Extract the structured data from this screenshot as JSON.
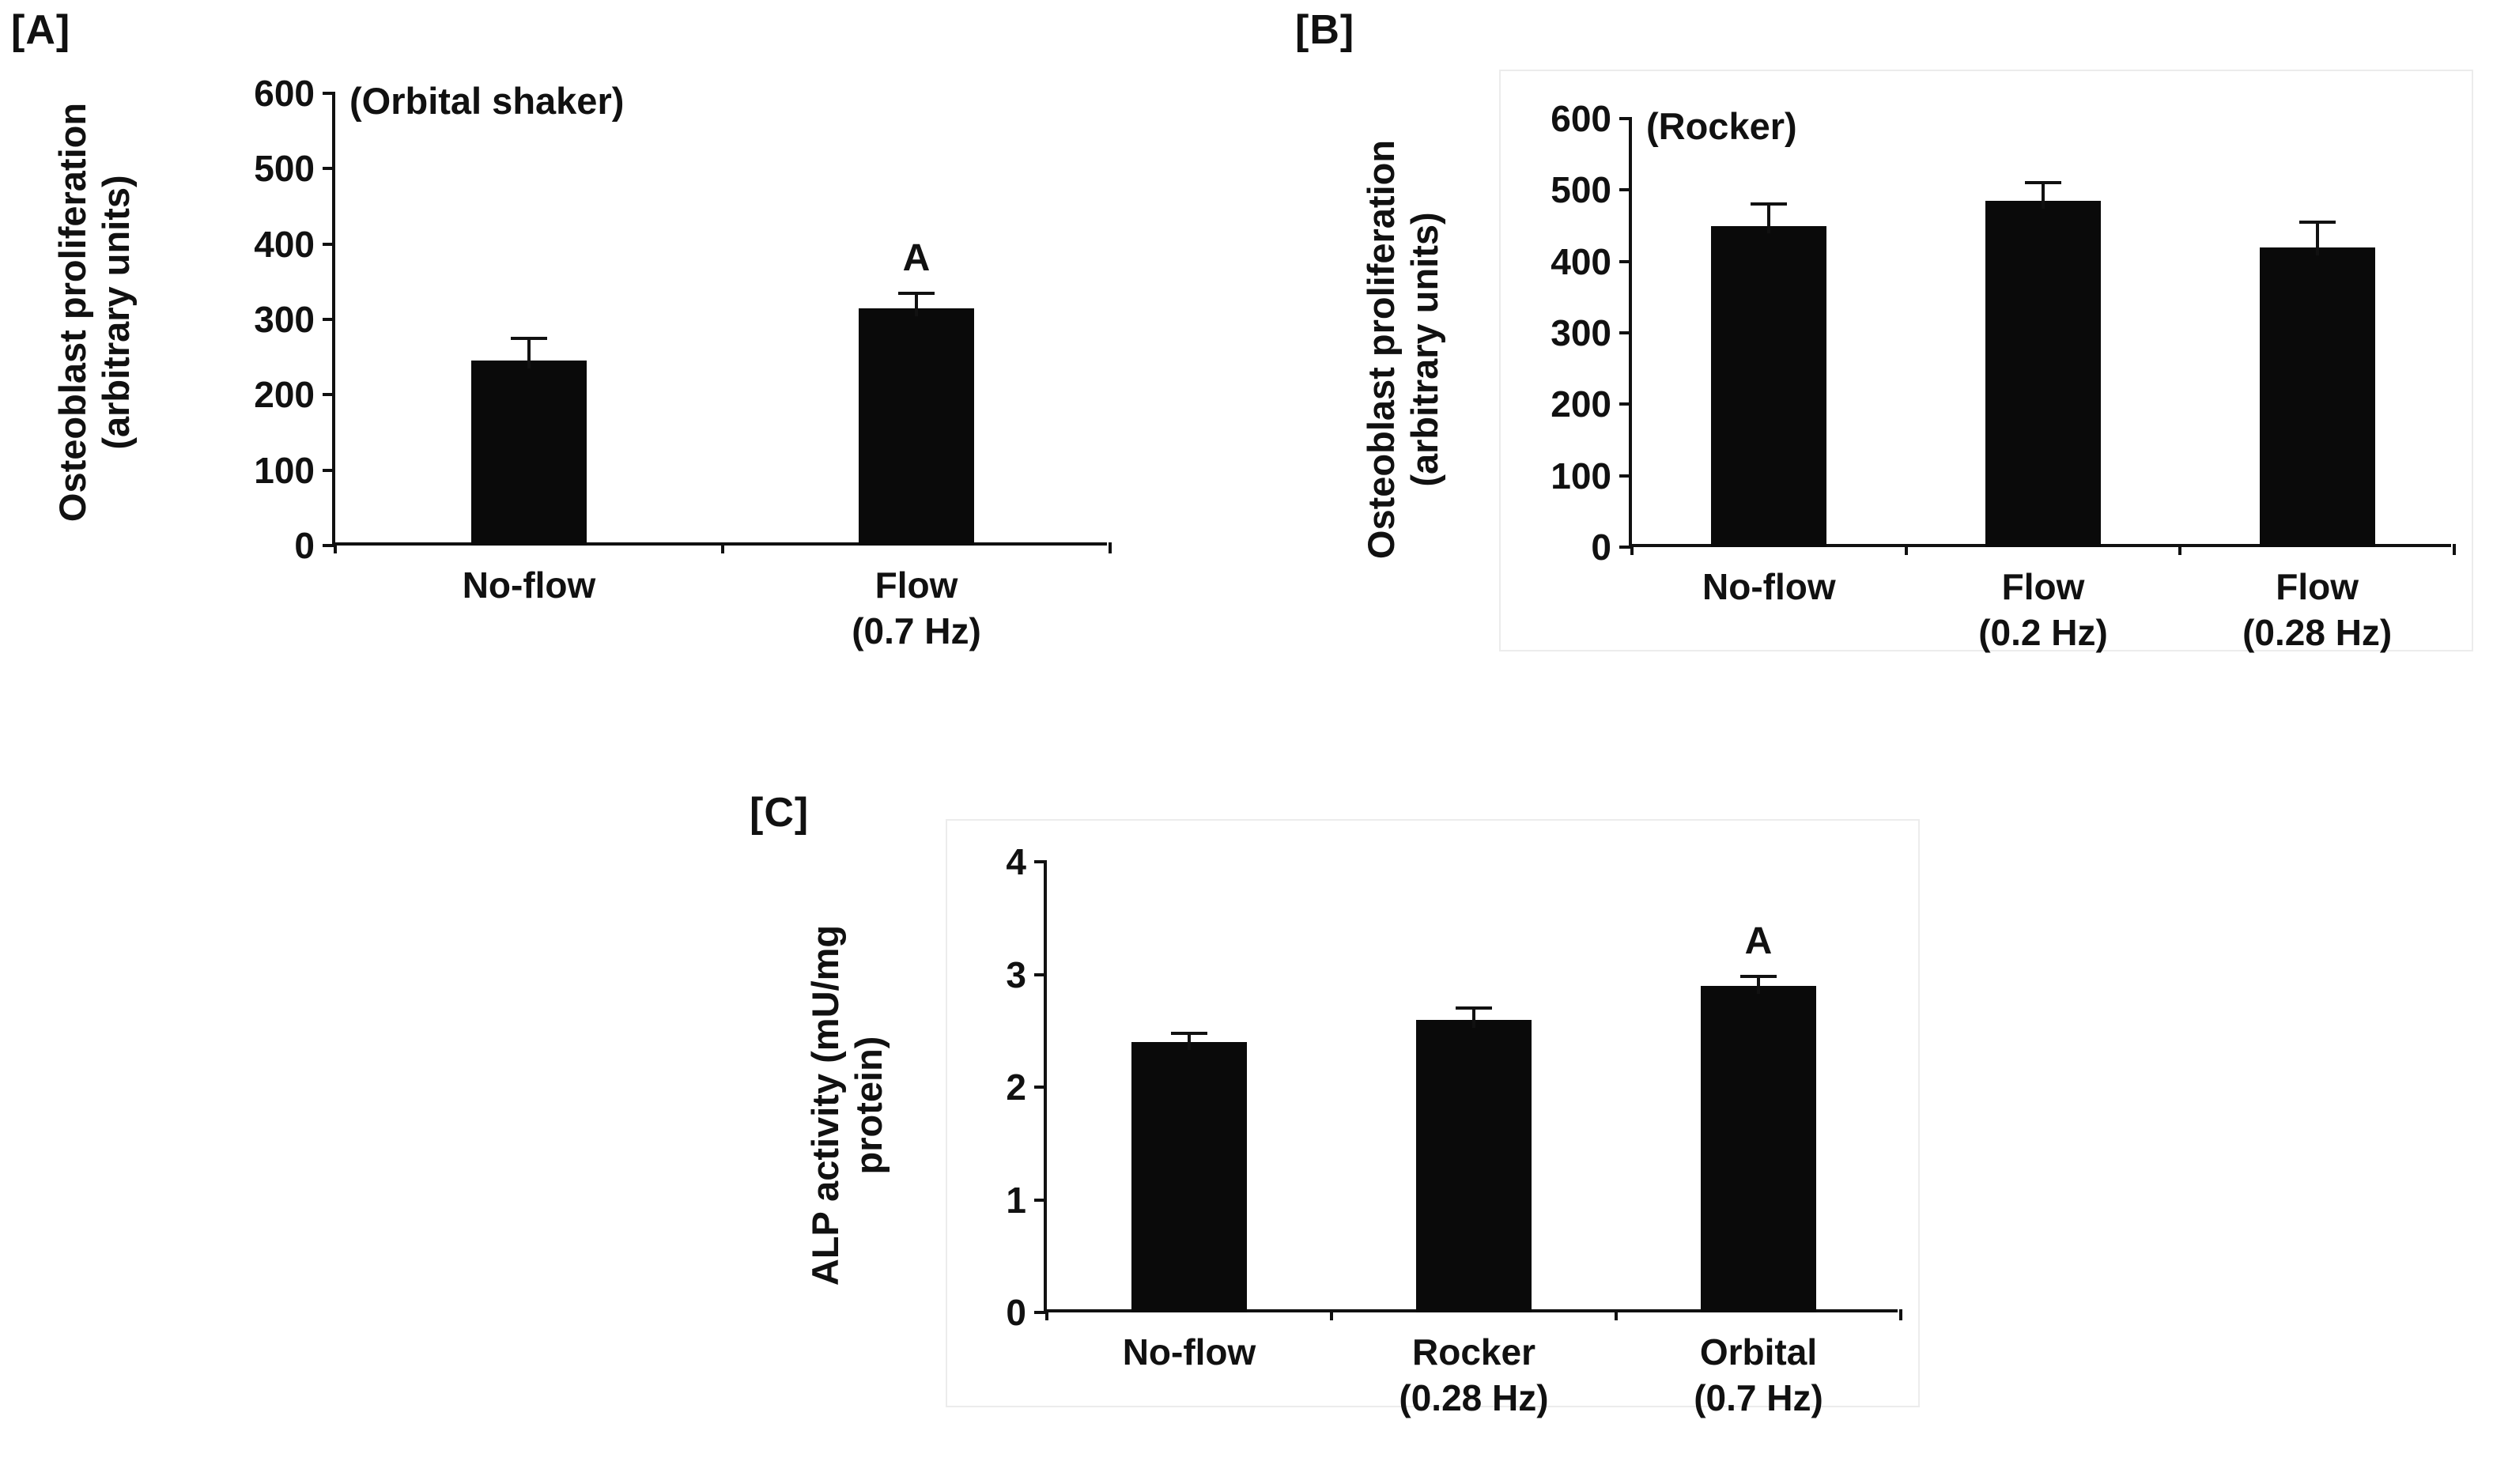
{
  "figure": {
    "background": "#ffffff",
    "bar_color": "#0a0a0a",
    "axis_color": "#111111",
    "text_color": "#111111"
  },
  "chart_data": [
    {
      "type": "bar",
      "panel_label": "[A]",
      "title": "(Orbital shaker)",
      "ylabel": "Osteoblast proliferation (arbitrary units)",
      "ylabel_lines": [
        "Osteoblast proliferation",
        "(arbitrary units)"
      ],
      "ylim": [
        0,
        600
      ],
      "yticks": [
        0,
        100,
        200,
        300,
        400,
        500,
        600
      ],
      "bars": [
        {
          "label": "No-flow",
          "sublabel": "",
          "value": 245,
          "error": 30,
          "annotation": ""
        },
        {
          "label": "Flow",
          "sublabel": "(0.7 Hz)",
          "value": 315,
          "error": 20,
          "annotation": "A"
        }
      ]
    },
    {
      "type": "bar",
      "panel_label": "[B]",
      "title": "(Rocker)",
      "ylabel": "Osteoblast proliferation (arbitrary units)",
      "ylabel_lines": [
        "Osteoblast proliferation",
        "(arbitrary units)"
      ],
      "ylim": [
        0,
        600
      ],
      "yticks": [
        0,
        100,
        200,
        300,
        400,
        500,
        600
      ],
      "bars": [
        {
          "label": "No-flow",
          "sublabel": "",
          "value": 450,
          "error": 30,
          "annotation": ""
        },
        {
          "label": "Flow",
          "sublabel": "(0.2 Hz)",
          "value": 485,
          "error": 25,
          "annotation": ""
        },
        {
          "label": "Flow",
          "sublabel": "(0.28 Hz)",
          "value": 420,
          "error": 35,
          "annotation": ""
        }
      ]
    },
    {
      "type": "bar",
      "panel_label": "[C]",
      "title": "",
      "ylabel": "ALP activity (mU/mg protein)",
      "ylabel_lines": [
        "ALP activity (mU/mg",
        "protein)"
      ],
      "ylim": [
        0,
        4
      ],
      "yticks": [
        0,
        1,
        2,
        3,
        4
      ],
      "bars": [
        {
          "label": "No-flow",
          "sublabel": "",
          "value": 2.4,
          "error": 0.08,
          "annotation": ""
        },
        {
          "label": "Rocker",
          "sublabel": "(0.28 Hz)",
          "value": 2.6,
          "error": 0.1,
          "annotation": ""
        },
        {
          "label": "Orbital",
          "sublabel": "(0.7 Hz)",
          "value": 2.9,
          "error": 0.08,
          "annotation": "A"
        }
      ]
    }
  ]
}
